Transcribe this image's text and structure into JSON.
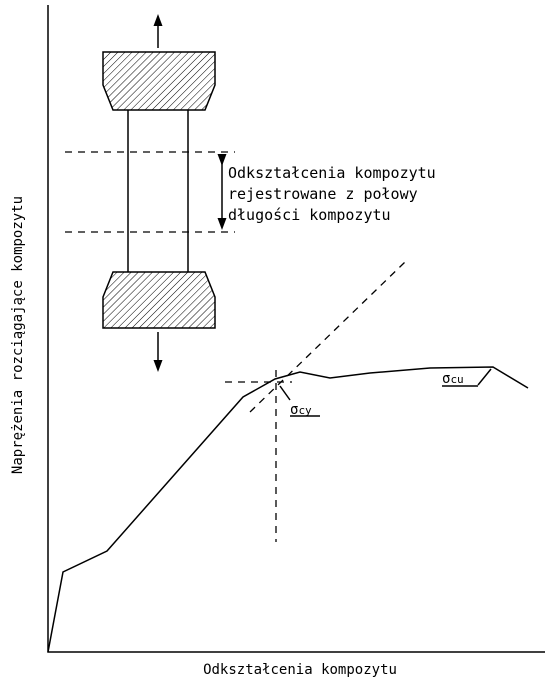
{
  "diagram": {
    "y_axis_label": "Naprężenia rozciągające kompozytu",
    "x_axis_label": "Odkształcenia kompozytu",
    "annotation": [
      "Odkształcenia kompozytu",
      "rejestrowane z połowy",
      "długości kompozytu"
    ],
    "sigma_cy": {
      "symbol": "σ",
      "subscript": "cy"
    },
    "sigma_cu": {
      "symbol": "σ",
      "subscript": "cu"
    }
  }
}
